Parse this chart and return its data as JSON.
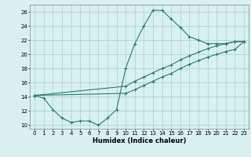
{
  "xlabel": "Humidex (Indice chaleur)",
  "background_color": "#d8f0f0",
  "grid_color": "#b8d8d8",
  "line_color": "#2a7a6a",
  "xlim": [
    -0.5,
    23.5
  ],
  "ylim": [
    9.5,
    27
  ],
  "x_ticks": [
    0,
    1,
    2,
    3,
    4,
    5,
    6,
    7,
    8,
    9,
    10,
    11,
    12,
    13,
    14,
    15,
    16,
    17,
    18,
    19,
    20,
    21,
    22,
    23
  ],
  "y_ticks": [
    10,
    12,
    14,
    16,
    18,
    20,
    22,
    24,
    26
  ],
  "line1_x": [
    0,
    1,
    2,
    3,
    4,
    5,
    6,
    7,
    8,
    9,
    10,
    11,
    12,
    13,
    14,
    15,
    16,
    17,
    18,
    19,
    20,
    21,
    22,
    23
  ],
  "line1_y": [
    14.2,
    13.8,
    12.2,
    11.0,
    10.4,
    10.6,
    10.6,
    10.0,
    11.0,
    12.2,
    18.0,
    21.5,
    24.0,
    26.2,
    26.2,
    25.0,
    23.8,
    22.5,
    22.0,
    21.5,
    21.5,
    21.5,
    21.8,
    21.8
  ],
  "line2_x": [
    0,
    10,
    11,
    12,
    13,
    14,
    15,
    16,
    17,
    18,
    19,
    20,
    21,
    22,
    23
  ],
  "line2_y": [
    14.2,
    15.5,
    16.2,
    16.8,
    17.4,
    18.0,
    18.5,
    19.2,
    19.8,
    20.3,
    20.8,
    21.2,
    21.5,
    21.8,
    21.8
  ],
  "line3_x": [
    0,
    10,
    11,
    12,
    13,
    14,
    15,
    16,
    17,
    18,
    19,
    20,
    21,
    22,
    23
  ],
  "line3_y": [
    14.2,
    14.5,
    15.0,
    15.6,
    16.2,
    16.8,
    17.3,
    18.0,
    18.6,
    19.1,
    19.6,
    20.0,
    20.4,
    20.7,
    21.8
  ]
}
